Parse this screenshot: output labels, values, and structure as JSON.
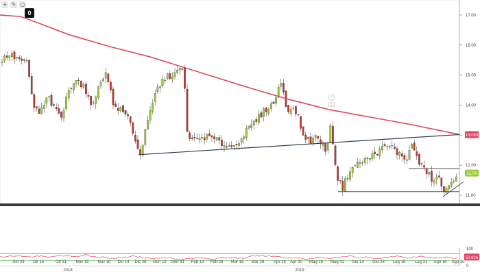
{
  "toolbar": {
    "zero_label": "0"
  },
  "chart_data": [
    {
      "type": "candlestick",
      "title": "",
      "ylim": [
        10.75,
        17.5
      ],
      "yticks": [
        "17.00",
        "16.00",
        "15.00",
        "14.00",
        "13.00",
        "12.00",
        "11.00"
      ],
      "xticks": [
        "Set 28",
        "Ott 15",
        "Ott 31",
        "Nov 15",
        "Nov 30",
        "Dic 14",
        "Dic 28",
        "Gen 15",
        "Gen 31",
        "Feb 14",
        "Feb 28",
        "Mar 15",
        "Mar 29",
        "Apr 15",
        "Apr 30",
        "Mag 15",
        "Mag 31",
        "Giu 14",
        "Giu 28",
        "Lug 15",
        "Lug 31",
        "Ago 16",
        "Ago 30"
      ],
      "year_labels": [
        "2018",
        "2019"
      ],
      "series": [
        {
          "name": "",
          "kind": "moving-average",
          "color": "#e0445f",
          "points": [
            [
              0,
              17.0
            ],
            [
              30,
              16.95
            ],
            [
              60,
              16.7
            ],
            [
              100,
              16.35
            ],
            [
              160,
              15.95
            ],
            [
              220,
              15.6
            ],
            [
              290,
              15.1
            ],
            [
              360,
              14.6
            ],
            [
              420,
              14.2
            ],
            [
              480,
              13.85
            ],
            [
              540,
              13.6
            ],
            [
              600,
              13.35
            ],
            [
              670,
              13.02
            ]
          ],
          "last_value_label": "13.083"
        },
        {
          "name": "",
          "kind": "trendline",
          "color": "#2c3e50",
          "points": [
            [
              202,
              12.35
            ],
            [
              670,
              13.02
            ]
          ]
        },
        {
          "name": "",
          "kind": "support-line",
          "color": "#333333",
          "points": [
            [
              493,
              11.12
            ],
            [
              670,
              11.12
            ]
          ]
        },
        {
          "name": "",
          "kind": "resistance-line",
          "color": "#333333",
          "points": [
            [
              596,
              11.88
            ],
            [
              670,
              11.88
            ]
          ]
        },
        {
          "name": "",
          "kind": "channel-line",
          "color": "#333333",
          "points": [
            [
              646,
              10.95
            ],
            [
              676,
              11.45
            ]
          ]
        }
      ],
      "last_price": "11.74",
      "watermark": "BG",
      "grid": false
    },
    {
      "type": "line",
      "title": "",
      "ylim": [
        0,
        100
      ],
      "yticks": [
        "100",
        "50",
        "0"
      ],
      "series": [
        {
          "name": "",
          "color": "#e0445f",
          "last_value_label": "50.926"
        }
      ],
      "levels": [
        {
          "value": 70,
          "color": "#e0445f"
        },
        {
          "value": 30,
          "color": "#5cb85c"
        }
      ]
    }
  ],
  "colors": {
    "up": "#9ccc3c",
    "down": "#c0392b",
    "ma": "#e0445f",
    "price_badge": "#9ccc3c",
    "ma_badge": "#e0445f"
  }
}
